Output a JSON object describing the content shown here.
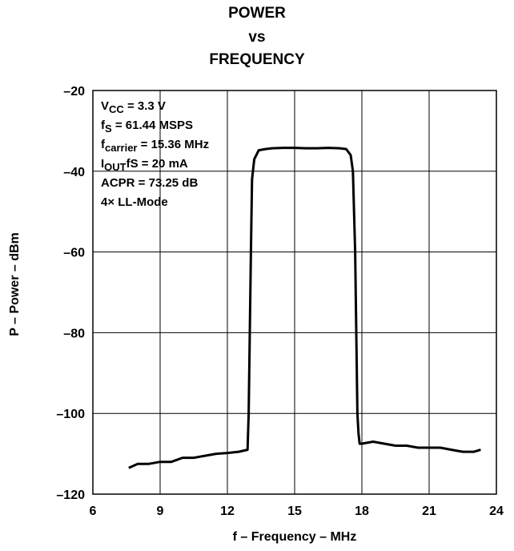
{
  "chart_data": {
    "type": "line",
    "title_lines": [
      "POWER",
      "vs",
      "FREQUENCY"
    ],
    "xlabel": "f – Frequency – MHz",
    "ylabel": "P – Power – dBm",
    "xlim": [
      6,
      24
    ],
    "ylim": [
      -120,
      -20
    ],
    "x_ticks": [
      6,
      9,
      12,
      15,
      18,
      21,
      24
    ],
    "y_ticks": [
      -20,
      -40,
      -60,
      -80,
      -100,
      -120
    ],
    "x_tick_labels": [
      "6",
      "9",
      "12",
      "15",
      "18",
      "21",
      "24"
    ],
    "y_tick_labels": [
      "–20",
      "–40",
      "–60",
      "–80",
      "–100",
      "–120"
    ],
    "grid": true,
    "series": [
      {
        "color": "#000000",
        "x": [
          7.6,
          8.0,
          8.5,
          9.0,
          9.5,
          10.0,
          10.5,
          11.0,
          11.5,
          12.0,
          12.5,
          12.9,
          12.95,
          13.0,
          13.05,
          13.1,
          13.2,
          13.4,
          13.7,
          14.0,
          14.5,
          15.0,
          15.5,
          16.0,
          16.5,
          17.0,
          17.3,
          17.5,
          17.6,
          17.7,
          17.75,
          17.8,
          17.85,
          17.9,
          18.0,
          18.5,
          19.0,
          19.5,
          20.0,
          20.5,
          21.0,
          21.5,
          22.0,
          22.5,
          23.0,
          23.3
        ],
        "y": [
          -113.5,
          -112.5,
          -112.5,
          -112.0,
          -112.0,
          -111.0,
          -111.0,
          -110.5,
          -110.0,
          -109.8,
          -109.5,
          -109.0,
          -100.0,
          -80.0,
          -60.0,
          -42.0,
          -37.0,
          -34.8,
          -34.5,
          -34.3,
          -34.2,
          -34.2,
          -34.3,
          -34.3,
          -34.2,
          -34.3,
          -34.5,
          -36.0,
          -40.0,
          -60.0,
          -80.0,
          -100.0,
          -105.0,
          -107.5,
          -107.5,
          -107.0,
          -107.5,
          -108.0,
          -108.0,
          -108.5,
          -108.5,
          -108.5,
          -109.0,
          -109.5,
          -109.5,
          -109.0
        ]
      }
    ],
    "annotations": [
      {
        "main": "V",
        "sub": "CC",
        "rest": " = 3.3 V"
      },
      {
        "main": "f",
        "sub": "S",
        "rest": " = 61.44 MSPS"
      },
      {
        "main": "f",
        "sub": "carrier",
        "rest": " = 15.36 MHz"
      },
      {
        "main": "I",
        "sub": "OUT",
        "rest": "fS = 20 mA"
      },
      {
        "main": "ACPR = 73.25 dB",
        "sub": "",
        "rest": ""
      },
      {
        "main": "4× LL-Mode",
        "sub": "",
        "rest": ""
      }
    ]
  }
}
